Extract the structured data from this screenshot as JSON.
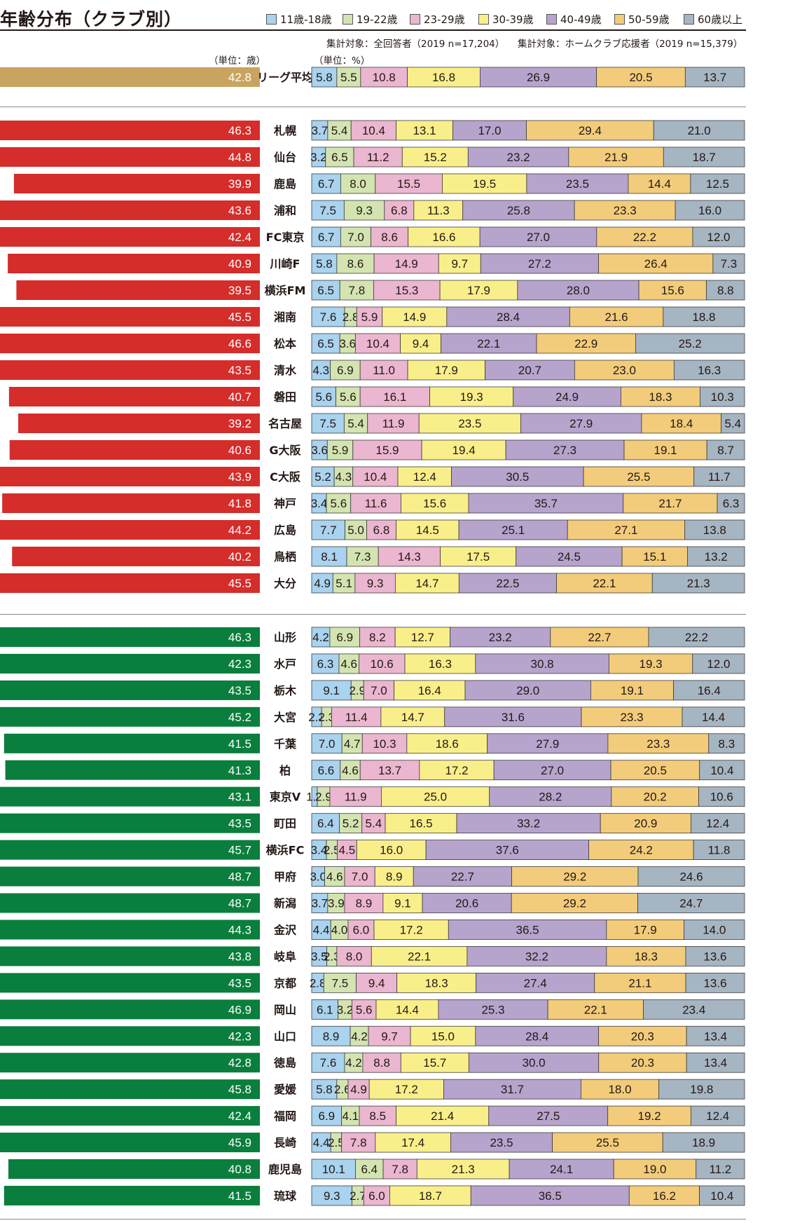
{
  "header": {
    "title": "年齢分布（クラブ別）",
    "target_note_left": "集計対象：全回答者（2019 n=17,204）",
    "target_note_right": "集計対象：ホームクラブ応援者（2019 n=15,379）",
    "unit_age": "（単位：歳）",
    "unit_pct": "（単位：%）"
  },
  "legend": [
    {
      "label": "11歳-18歳",
      "color": "#a9d3ee"
    },
    {
      "label": "19-22歳",
      "color": "#d3e4b1"
    },
    {
      "label": "23-29歳",
      "color": "#ebb6cf"
    },
    {
      "label": "30-39歳",
      "color": "#f9ef8a"
    },
    {
      "label": "40-49歳",
      "color": "#b6a4cd"
    },
    {
      "label": "50-59歳",
      "color": "#f2cc7a"
    },
    {
      "label": "60歳以上",
      "color": "#a6b5c2"
    }
  ],
  "colors": {
    "league_avg_bar": "#c8a45f",
    "j1_bar": "#d42d2a",
    "j2_bar": "#0a7e3c"
  },
  "chart_data": {
    "type": "bar",
    "age_axis_max": 50,
    "segment_labels": [
      "11歳-18歳",
      "19-22歳",
      "23-29歳",
      "30-39歳",
      "40-49歳",
      "50-59歳",
      "60歳以上"
    ],
    "league_average": {
      "name": "リーグ平均",
      "avg_age": "42.8",
      "dist": [
        "5.8",
        "5.5",
        "10.8",
        "16.8",
        "26.9",
        "20.5",
        "13.7"
      ]
    },
    "j1": [
      {
        "name": "札幌",
        "avg_age": "46.3",
        "dist": [
          "3.7",
          "5.4",
          "10.4",
          "13.1",
          "17.0",
          "29.4",
          "21.0"
        ]
      },
      {
        "name": "仙台",
        "avg_age": "44.8",
        "dist": [
          "3.2",
          "6.5",
          "11.2",
          "15.2",
          "23.2",
          "21.9",
          "18.7"
        ]
      },
      {
        "name": "鹿島",
        "avg_age": "39.9",
        "dist": [
          "6.7",
          "8.0",
          "15.5",
          "19.5",
          "23.5",
          "14.4",
          "12.5"
        ]
      },
      {
        "name": "浦和",
        "avg_age": "43.6",
        "dist": [
          "7.5",
          "9.3",
          "6.8",
          "11.3",
          "25.8",
          "23.3",
          "16.0"
        ]
      },
      {
        "name": "FC東京",
        "avg_age": "42.4",
        "dist": [
          "6.7",
          "7.0",
          "8.6",
          "16.6",
          "27.0",
          "22.2",
          "12.0"
        ]
      },
      {
        "name": "川崎F",
        "avg_age": "40.9",
        "dist": [
          "5.8",
          "8.6",
          "14.9",
          "9.7",
          "27.2",
          "26.4",
          "7.3"
        ]
      },
      {
        "name": "横浜FM",
        "avg_age": "39.5",
        "dist": [
          "6.5",
          "7.8",
          "15.3",
          "17.9",
          "28.0",
          "15.6",
          "8.8"
        ]
      },
      {
        "name": "湘南",
        "avg_age": "45.5",
        "dist": [
          "7.6",
          "2.8",
          "5.9",
          "14.9",
          "28.4",
          "21.6",
          "18.8"
        ]
      },
      {
        "name": "松本",
        "avg_age": "46.6",
        "dist": [
          "6.5",
          "3.6",
          "10.4",
          "9.4",
          "22.1",
          "22.9",
          "25.2"
        ]
      },
      {
        "name": "清水",
        "avg_age": "43.5",
        "dist": [
          "4.3",
          "6.9",
          "11.0",
          "17.9",
          "20.7",
          "23.0",
          "16.3"
        ]
      },
      {
        "name": "磐田",
        "avg_age": "40.7",
        "dist": [
          "5.6",
          "5.6",
          "16.1",
          "19.3",
          "24.9",
          "18.3",
          "10.3"
        ]
      },
      {
        "name": "名古屋",
        "avg_age": "39.2",
        "dist": [
          "7.5",
          "5.4",
          "11.9",
          "23.5",
          "27.9",
          "18.4",
          "5.4"
        ]
      },
      {
        "name": "G大阪",
        "avg_age": "40.6",
        "dist": [
          "3.6",
          "5.9",
          "15.9",
          "19.4",
          "27.3",
          "19.1",
          "8.7"
        ]
      },
      {
        "name": "C大阪",
        "avg_age": "43.9",
        "dist": [
          "5.2",
          "4.3",
          "10.4",
          "12.4",
          "30.5",
          "25.5",
          "11.7"
        ]
      },
      {
        "name": "神戸",
        "avg_age": "41.8",
        "dist": [
          "3.4",
          "5.6",
          "11.6",
          "15.6",
          "35.7",
          "21.7",
          "6.3"
        ]
      },
      {
        "name": "広島",
        "avg_age": "44.2",
        "dist": [
          "7.7",
          "5.0",
          "6.8",
          "14.5",
          "25.1",
          "27.1",
          "13.8"
        ]
      },
      {
        "name": "鳥栖",
        "avg_age": "40.2",
        "dist": [
          "8.1",
          "7.3",
          "14.3",
          "17.5",
          "24.5",
          "15.1",
          "13.2"
        ]
      },
      {
        "name": "大分",
        "avg_age": "45.5",
        "dist": [
          "4.9",
          "5.1",
          "9.3",
          "14.7",
          "22.5",
          "22.1",
          "21.3"
        ]
      }
    ],
    "j2": [
      {
        "name": "山形",
        "avg_age": "46.3",
        "dist": [
          "4.2",
          "6.9",
          "8.2",
          "12.7",
          "23.2",
          "22.7",
          "22.2"
        ]
      },
      {
        "name": "水戸",
        "avg_age": "42.3",
        "dist": [
          "6.3",
          "4.6",
          "10.6",
          "16.3",
          "30.8",
          "19.3",
          "12.0"
        ]
      },
      {
        "name": "栃木",
        "avg_age": "43.5",
        "dist": [
          "9.1",
          "2.9",
          "7.0",
          "16.4",
          "29.0",
          "19.1",
          "16.4"
        ]
      },
      {
        "name": "大宮",
        "avg_age": "45.2",
        "dist": [
          "2.3",
          "2.3",
          "11.4",
          "14.7",
          "31.6",
          "23.3",
          "14.4"
        ]
      },
      {
        "name": "千葉",
        "avg_age": "41.5",
        "dist": [
          "7.0",
          "4.7",
          "10.3",
          "18.6",
          "27.9",
          "23.3",
          "8.3"
        ]
      },
      {
        "name": "柏",
        "avg_age": "41.3",
        "dist": [
          "6.6",
          "4.6",
          "13.7",
          "17.2",
          "27.0",
          "20.5",
          "10.4"
        ]
      },
      {
        "name": "東京V",
        "avg_age": "43.1",
        "dist": [
          "1.3",
          "2.9",
          "11.9",
          "25.0",
          "28.2",
          "20.2",
          "10.6"
        ]
      },
      {
        "name": "町田",
        "avg_age": "43.5",
        "dist": [
          "6.4",
          "5.2",
          "5.4",
          "16.5",
          "33.2",
          "20.9",
          "12.4"
        ]
      },
      {
        "name": "横浜FC",
        "avg_age": "45.7",
        "dist": [
          "3.4",
          "2.5",
          "4.5",
          "16.0",
          "37.6",
          "24.2",
          "11.8"
        ]
      },
      {
        "name": "甲府",
        "avg_age": "48.7",
        "dist": [
          "3.0",
          "4.6",
          "7.0",
          "8.9",
          "22.7",
          "29.2",
          "24.6"
        ]
      },
      {
        "name": "新潟",
        "avg_age": "48.7",
        "dist": [
          "3.7",
          "3.9",
          "8.9",
          "9.1",
          "20.6",
          "29.2",
          "24.7"
        ]
      },
      {
        "name": "金沢",
        "avg_age": "44.3",
        "dist": [
          "4.4",
          "4.0",
          "6.0",
          "17.2",
          "36.5",
          "17.9",
          "14.0"
        ]
      },
      {
        "name": "岐阜",
        "avg_age": "43.8",
        "dist": [
          "3.5",
          "2.3",
          "8.0",
          "22.1",
          "32.2",
          "18.3",
          "13.6"
        ]
      },
      {
        "name": "京都",
        "avg_age": "43.5",
        "dist": [
          "2.8",
          "7.5",
          "9.4",
          "18.3",
          "27.4",
          "21.1",
          "13.6"
        ]
      },
      {
        "name": "岡山",
        "avg_age": "46.9",
        "dist": [
          "6.1",
          "3.2",
          "5.6",
          "14.4",
          "25.3",
          "22.1",
          "23.4"
        ]
      },
      {
        "name": "山口",
        "avg_age": "42.3",
        "dist": [
          "8.9",
          "4.2",
          "9.7",
          "15.0",
          "28.4",
          "20.3",
          "13.4"
        ]
      },
      {
        "name": "徳島",
        "avg_age": "42.8",
        "dist": [
          "7.6",
          "4.2",
          "8.8",
          "15.7",
          "30.0",
          "20.3",
          "13.4"
        ]
      },
      {
        "name": "愛媛",
        "avg_age": "45.8",
        "dist": [
          "5.8",
          "2.6",
          "4.9",
          "17.2",
          "31.7",
          "18.0",
          "19.8"
        ]
      },
      {
        "name": "福岡",
        "avg_age": "42.4",
        "dist": [
          "6.9",
          "4.1",
          "8.5",
          "21.4",
          "27.5",
          "19.2",
          "12.4"
        ]
      },
      {
        "name": "長崎",
        "avg_age": "45.9",
        "dist": [
          "4.4",
          "2.5",
          "7.8",
          "17.4",
          "23.5",
          "25.5",
          "18.9"
        ]
      },
      {
        "name": "鹿児島",
        "avg_age": "40.8",
        "dist": [
          "10.1",
          "6.4",
          "7.8",
          "21.3",
          "24.1",
          "19.0",
          "11.2"
        ]
      },
      {
        "name": "琉球",
        "avg_age": "41.5",
        "dist": [
          "9.3",
          "2.7",
          "6.0",
          "18.7",
          "36.5",
          "16.2",
          "10.4"
        ]
      }
    ]
  }
}
